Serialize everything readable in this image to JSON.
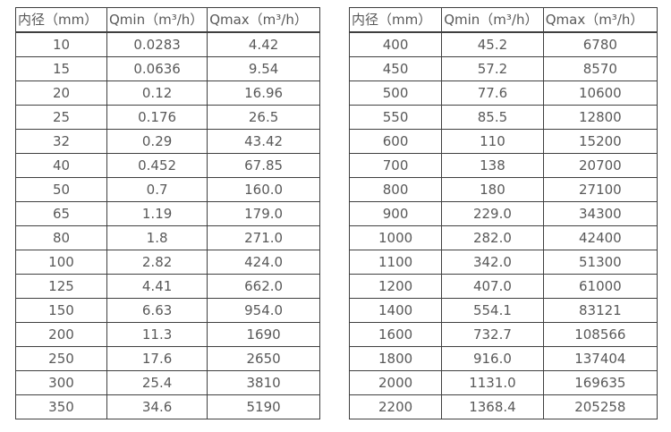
{
  "tables": [
    {
      "name": "flow-range-table-small-diameters",
      "headers": [
        "内径（mm）",
        "Qmin（m³/h）",
        "Qmax（m³/h）"
      ],
      "rows": [
        [
          "10",
          "0.0283",
          "4.42"
        ],
        [
          "15",
          "0.0636",
          "9.54"
        ],
        [
          "20",
          "0.12",
          "16.96"
        ],
        [
          "25",
          "0.176",
          "26.5"
        ],
        [
          "32",
          "0.29",
          "43.42"
        ],
        [
          "40",
          "0.452",
          "67.85"
        ],
        [
          "50",
          "0.7",
          "160.0"
        ],
        [
          "65",
          "1.19",
          "179.0"
        ],
        [
          "80",
          "1.8",
          "271.0"
        ],
        [
          "100",
          "2.82",
          "424.0"
        ],
        [
          "125",
          "4.41",
          "662.0"
        ],
        [
          "150",
          "6.63",
          "954.0"
        ],
        [
          "200",
          "11.3",
          "1690"
        ],
        [
          "250",
          "17.6",
          "2650"
        ],
        [
          "300",
          "25.4",
          "3810"
        ],
        [
          "350",
          "34.6",
          "5190"
        ]
      ]
    },
    {
      "name": "flow-range-table-large-diameters",
      "headers": [
        "内径（mm）",
        "Qmin（m³/h）",
        "Qmax（m³/h）"
      ],
      "rows": [
        [
          "400",
          "45.2",
          "6780"
        ],
        [
          "450",
          "57.2",
          "8570"
        ],
        [
          "500",
          "77.6",
          "10600"
        ],
        [
          "550",
          "85.5",
          "12800"
        ],
        [
          "600",
          "110",
          "15200"
        ],
        [
          "700",
          "138",
          "20700"
        ],
        [
          "800",
          "180",
          "27100"
        ],
        [
          "900",
          "229.0",
          "34300"
        ],
        [
          "1000",
          "282.0",
          "42400"
        ],
        [
          "1100",
          "342.0",
          "51300"
        ],
        [
          "1200",
          "407.0",
          "61000"
        ],
        [
          "1400",
          "554.1",
          "83121"
        ],
        [
          "1600",
          "732.7",
          "108566"
        ],
        [
          "1800",
          "916.0",
          "137404"
        ],
        [
          "2000",
          "1131.0",
          "169635"
        ],
        [
          "2200",
          "1368.4",
          "205258"
        ]
      ]
    }
  ],
  "colors": {
    "border": "#404040",
    "text": "#595959",
    "background": "#ffffff"
  }
}
